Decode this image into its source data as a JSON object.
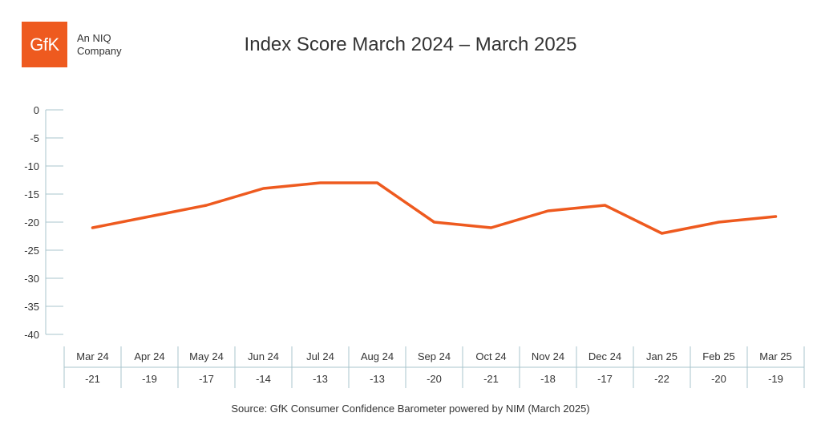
{
  "brand": {
    "logo_text": "GfK",
    "tagline_line1": "An NIQ",
    "tagline_line2": "Company",
    "color": "#ee5a1f"
  },
  "source": "Source: GfK Consumer Confidence Barometer powered by NIM (March 2025)",
  "chart_data": {
    "type": "line",
    "title": "Index Score March 2024 – March 2025",
    "categories": [
      "Mar 24",
      "Apr 24",
      "May 24",
      "Jun 24",
      "Jul 24",
      "Aug 24",
      "Sep 24",
      "Oct 24",
      "Nov 24",
      "Dec 24",
      "Jan 25",
      "Feb 25",
      "Mar 25"
    ],
    "series": [
      {
        "values": [
          -21,
          -19,
          -17,
          -14,
          -13,
          -13,
          -20,
          -21,
          -18,
          -17,
          -22,
          -20,
          -19
        ],
        "color": "#ee5a1f"
      }
    ],
    "table_row": [
      "-21",
      "-19",
      "-17",
      "-14",
      "-13",
      "-13",
      "-20",
      "-21",
      "-18",
      "-17",
      "-22",
      "-20",
      "-19"
    ],
    "y_ticks": [
      0,
      -5,
      -10,
      -15,
      -20,
      -25,
      -30,
      -35,
      -40
    ],
    "ylim": [
      -40,
      0
    ],
    "grid": false,
    "axis_color": "#a9c4cc",
    "legend": "none"
  }
}
